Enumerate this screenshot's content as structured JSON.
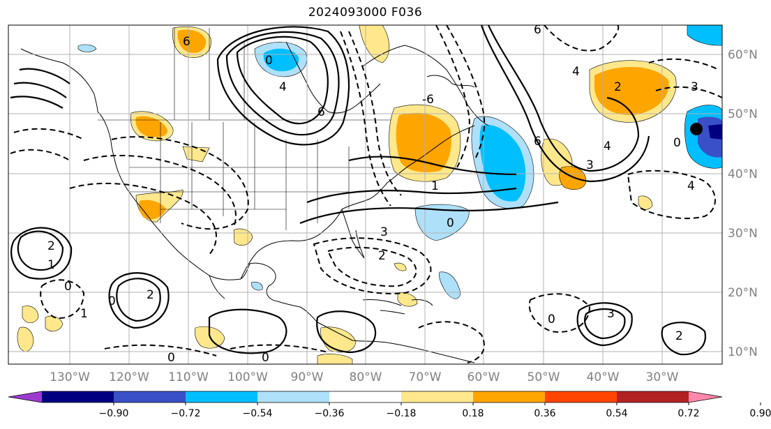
{
  "title": "2024093000 F036",
  "map": {
    "lon_ticks": [
      "130°W",
      "120°W",
      "110°W",
      "100°W",
      "90°W",
      "80°W",
      "70°W",
      "60°W",
      "50°W",
      "40°W",
      "30°W"
    ],
    "lat_ticks": [
      "60°N",
      "50°N",
      "40°N",
      "30°N",
      "20°N",
      "10°N"
    ],
    "contour_labels": [
      {
        "name": "contour-label-6",
        "text": "6"
      },
      {
        "name": "contour-label-neg-6",
        "text": "-6"
      },
      {
        "name": "contour-label-4",
        "text": "4"
      },
      {
        "name": "contour-label-3",
        "text": "3"
      },
      {
        "name": "contour-label-2",
        "text": "2"
      },
      {
        "name": "contour-label-1",
        "text": "1"
      },
      {
        "name": "contour-label-0",
        "text": "0"
      }
    ],
    "marker": {
      "name": "point-marker",
      "color": "#000000"
    }
  },
  "colorbar": {
    "colors": [
      "#9c3ad0",
      "#000080",
      "#3a50c8",
      "#00bfff",
      "#aee0fa",
      "#ffffff",
      "#ffe88c",
      "#ffa500",
      "#ff4500",
      "#b22222",
      "#ff88aa"
    ],
    "tick_labels": [
      "−0.90",
      "−0.72",
      "−0.54",
      "−0.36",
      "−0.18",
      "0.18",
      "0.36",
      "0.54",
      "0.72",
      "0.90"
    ]
  }
}
